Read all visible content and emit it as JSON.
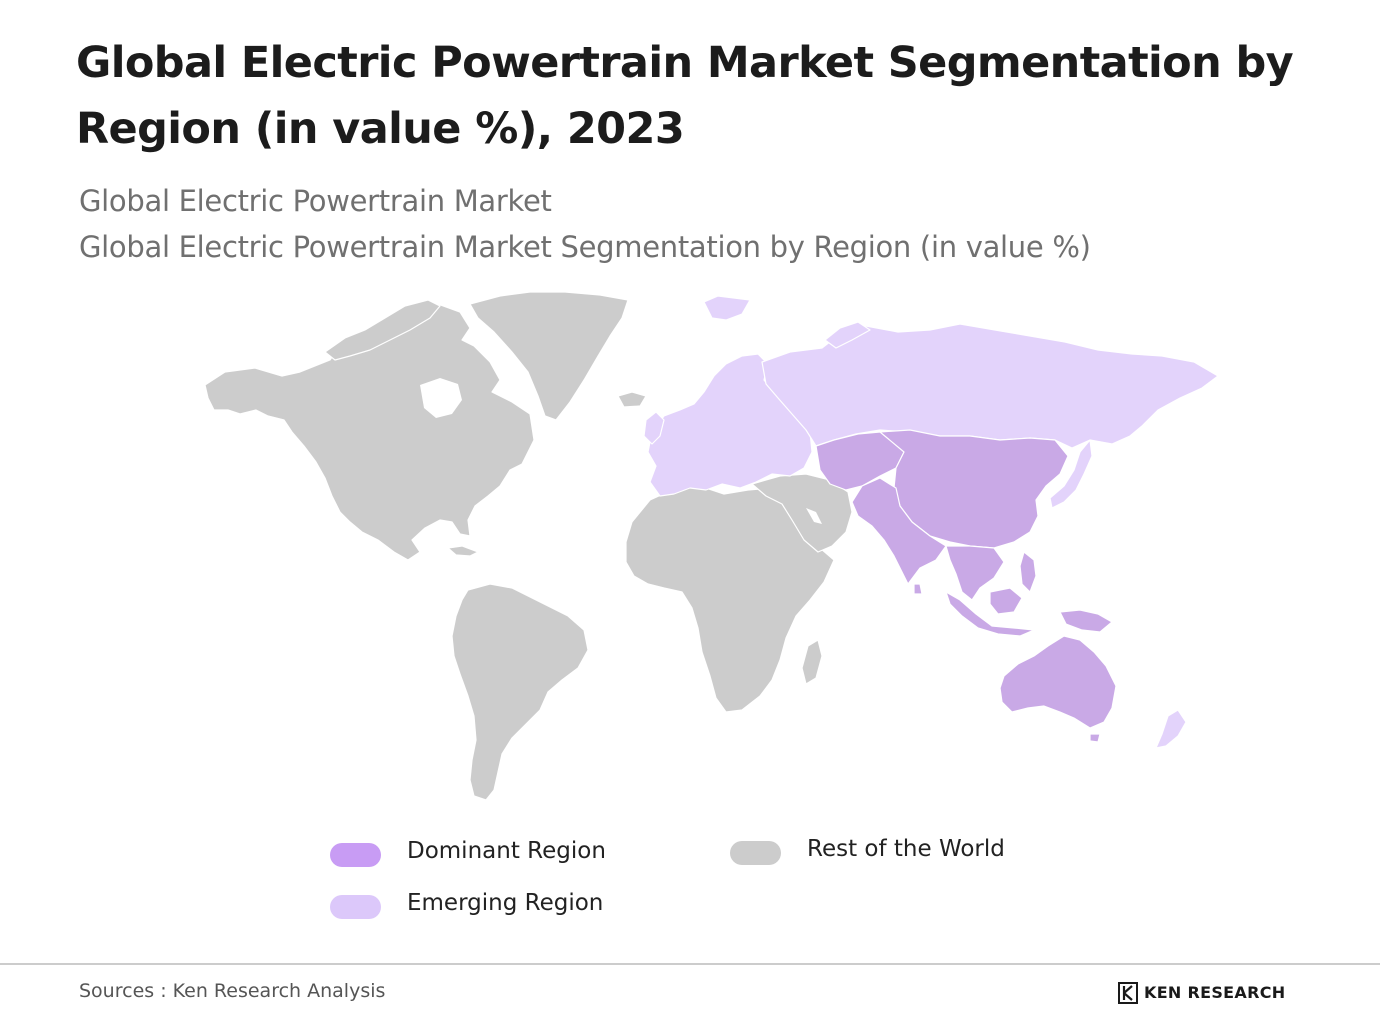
{
  "title": "Global Electric Powertrain Market Segmentation by Region (in value %), 2023",
  "subtitle_1": "Global Electric Powertrain Market",
  "subtitle_2": "Global Electric Powertrain Market Segmentation by Region (in value %)",
  "colors": {
    "dominant": "#c9a9e6",
    "emerging": "#e3d3fb",
    "rest": "#cccccc",
    "legend_dominant": "#c89cf4",
    "legend_emerging": "#dcc8fa"
  },
  "regions": {
    "dominant": [
      "China",
      "India",
      "Southeast Asia",
      "Australia",
      "Central Asia"
    ],
    "emerging": [
      "Europe",
      "Russia",
      "Japan",
      "New Zealand"
    ],
    "rest": [
      "North America",
      "Greenland",
      "Latin America",
      "Africa",
      "Middle East"
    ]
  },
  "legend": {
    "dominant": "Dominant Region",
    "emerging": "Emerging Region",
    "rest": "Rest of the World"
  },
  "source": "Sources : Ken Research Analysis",
  "logo_text": "KEN RESEARCH"
}
